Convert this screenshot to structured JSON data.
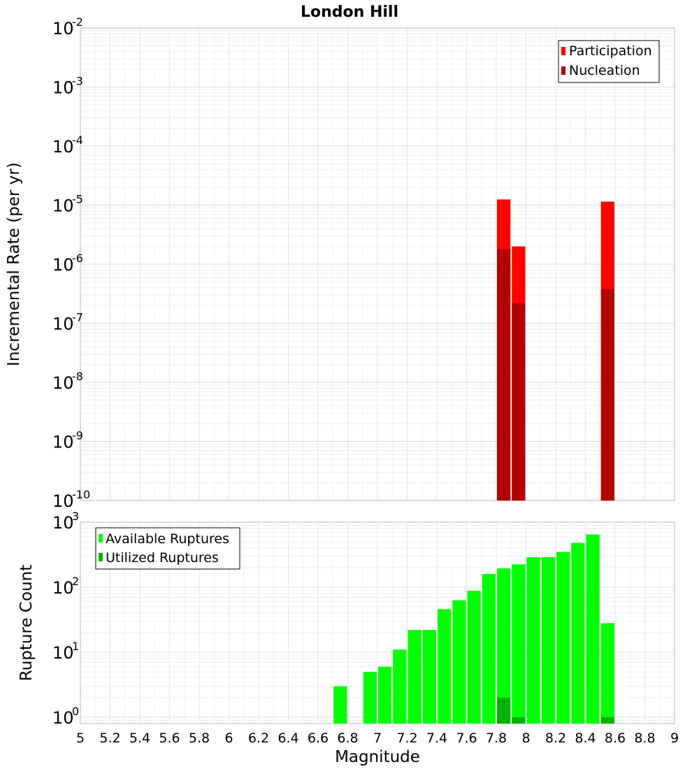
{
  "chart_data": [
    {
      "type": "bar",
      "title": "London Hill",
      "ylabel": "Incremental Rate (per yr)",
      "xlabel": "",
      "yscale": "log",
      "ylim": [
        1e-10,
        0.01
      ],
      "xlim": [
        5,
        9
      ],
      "bar_width": 0.1,
      "grid": true,
      "legend_position": "top-right",
      "series": [
        {
          "name": "Participation",
          "color": "#ff0000",
          "points": [
            {
              "x": 7.85,
              "y": 1.25e-05
            },
            {
              "x": 7.95,
              "y": 2e-06
            },
            {
              "x": 8.55,
              "y": 1.15e-05
            }
          ]
        },
        {
          "name": "Nucleation",
          "color": "#b30000",
          "points": [
            {
              "x": 7.85,
              "y": 1.8e-06
            },
            {
              "x": 7.95,
              "y": 2.2e-07
            },
            {
              "x": 8.55,
              "y": 3.8e-07
            }
          ]
        }
      ],
      "y_ticks": [
        {
          "base": "10",
          "exp": "-10"
        },
        {
          "base": "10",
          "exp": "-9"
        },
        {
          "base": "10",
          "exp": "-8"
        },
        {
          "base": "10",
          "exp": "-7"
        },
        {
          "base": "10",
          "exp": "-6"
        },
        {
          "base": "10",
          "exp": "-5"
        },
        {
          "base": "10",
          "exp": "-4"
        },
        {
          "base": "10",
          "exp": "-3"
        },
        {
          "base": "10",
          "exp": "-2"
        }
      ]
    },
    {
      "type": "bar",
      "title": "",
      "ylabel": "Rupture Count",
      "xlabel": "Magnitude",
      "yscale": "log",
      "ylim": [
        0.8,
        1000
      ],
      "xlim": [
        5,
        9
      ],
      "bar_width": 0.1,
      "grid": true,
      "legend_position": "top-left",
      "series": [
        {
          "name": "Available Ruptures",
          "color": "#00ff00",
          "points": [
            {
              "x": 6.75,
              "y": 3
            },
            {
              "x": 6.95,
              "y": 5
            },
            {
              "x": 7.05,
              "y": 6
            },
            {
              "x": 7.15,
              "y": 11
            },
            {
              "x": 7.25,
              "y": 22
            },
            {
              "x": 7.35,
              "y": 22
            },
            {
              "x": 7.45,
              "y": 46
            },
            {
              "x": 7.55,
              "y": 63
            },
            {
              "x": 7.65,
              "y": 88
            },
            {
              "x": 7.75,
              "y": 160
            },
            {
              "x": 7.85,
              "y": 195
            },
            {
              "x": 7.95,
              "y": 225
            },
            {
              "x": 8.05,
              "y": 290
            },
            {
              "x": 8.15,
              "y": 290
            },
            {
              "x": 8.25,
              "y": 350
            },
            {
              "x": 8.35,
              "y": 480
            },
            {
              "x": 8.45,
              "y": 650
            },
            {
              "x": 8.55,
              "y": 28
            }
          ]
        },
        {
          "name": "Utilized Ruptures",
          "color": "#00b300",
          "points": [
            {
              "x": 7.85,
              "y": 2
            },
            {
              "x": 7.95,
              "y": 1
            },
            {
              "x": 8.55,
              "y": 1
            }
          ]
        }
      ],
      "y_ticks": [
        {
          "base": "10",
          "exp": "0"
        },
        {
          "base": "10",
          "exp": "1"
        },
        {
          "base": "10",
          "exp": "2"
        },
        {
          "base": "10",
          "exp": "3"
        }
      ],
      "x_ticks": [
        "5",
        "5.2",
        "5.4",
        "5.6",
        "5.8",
        "6",
        "6.2",
        "6.4",
        "6.6",
        "6.8",
        "7",
        "7.2",
        "7.4",
        "7.6",
        "7.8",
        "8",
        "8.2",
        "8.4",
        "8.6",
        "8.8",
        "9"
      ]
    }
  ]
}
